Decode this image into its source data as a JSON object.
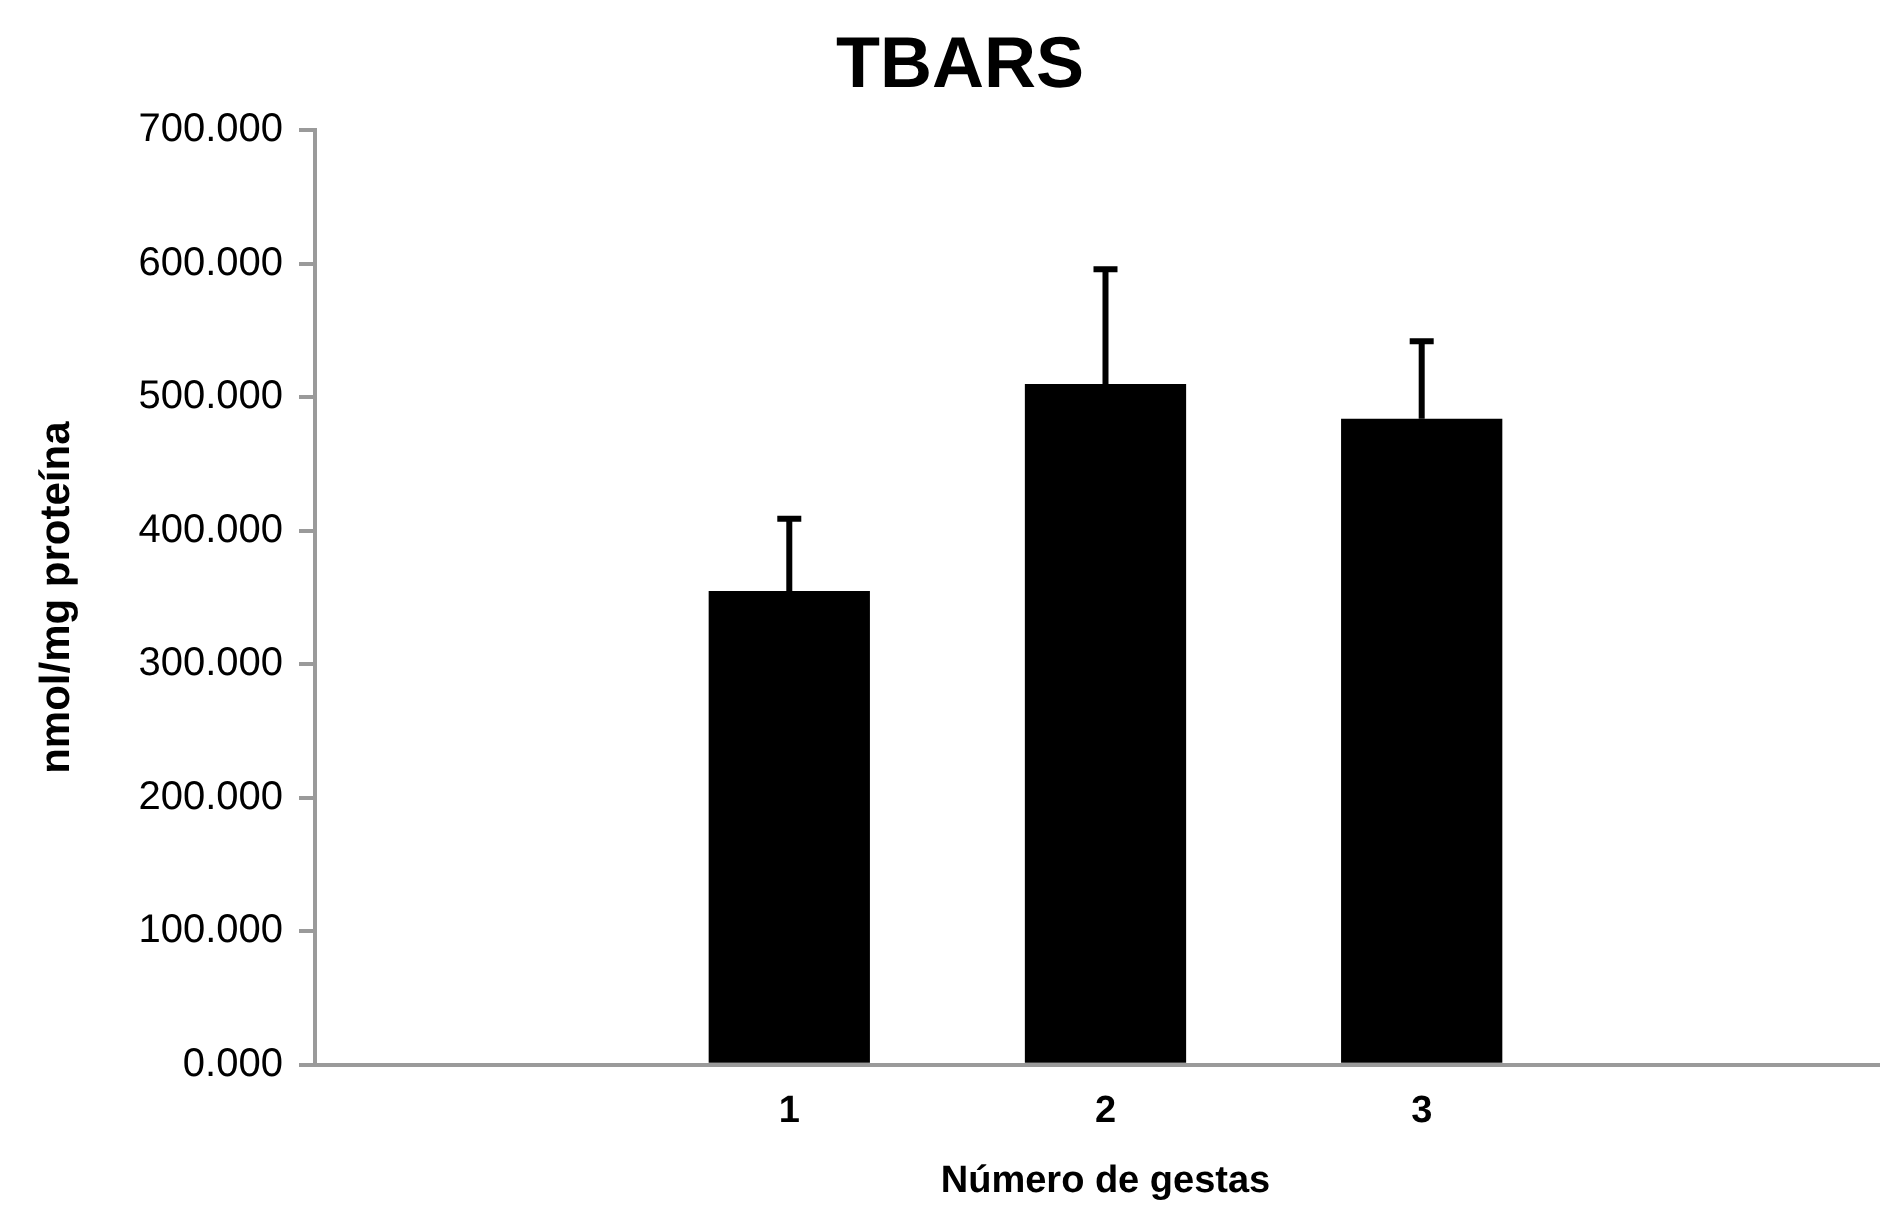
{
  "chart_data": {
    "type": "bar",
    "title": "TBARS",
    "xlabel": "Número de gestas",
    "ylabel": "nmol/mg proteína",
    "categories": [
      null,
      "1",
      "2",
      "3",
      null
    ],
    "values": [
      null,
      355,
      510,
      484,
      null
    ],
    "errors": [
      null,
      [
        355,
        409
      ],
      [
        510,
        596
      ],
      [
        484,
        542
      ],
      null
    ],
    "color": "#000000",
    "ylim": [
      0,
      700
    ],
    "yticks": [
      {
        "value": 0,
        "label": "0.000"
      },
      {
        "value": 100,
        "label": "100.000"
      },
      {
        "value": 200,
        "label": "200.000"
      },
      {
        "value": 300,
        "label": "300.000"
      },
      {
        "value": 400,
        "label": "400.000"
      },
      {
        "value": 500,
        "label": "500.000"
      },
      {
        "value": 600,
        "label": "600.000"
      },
      {
        "value": 700,
        "label": "700.000"
      }
    ],
    "grid": false,
    "legend": false
  }
}
